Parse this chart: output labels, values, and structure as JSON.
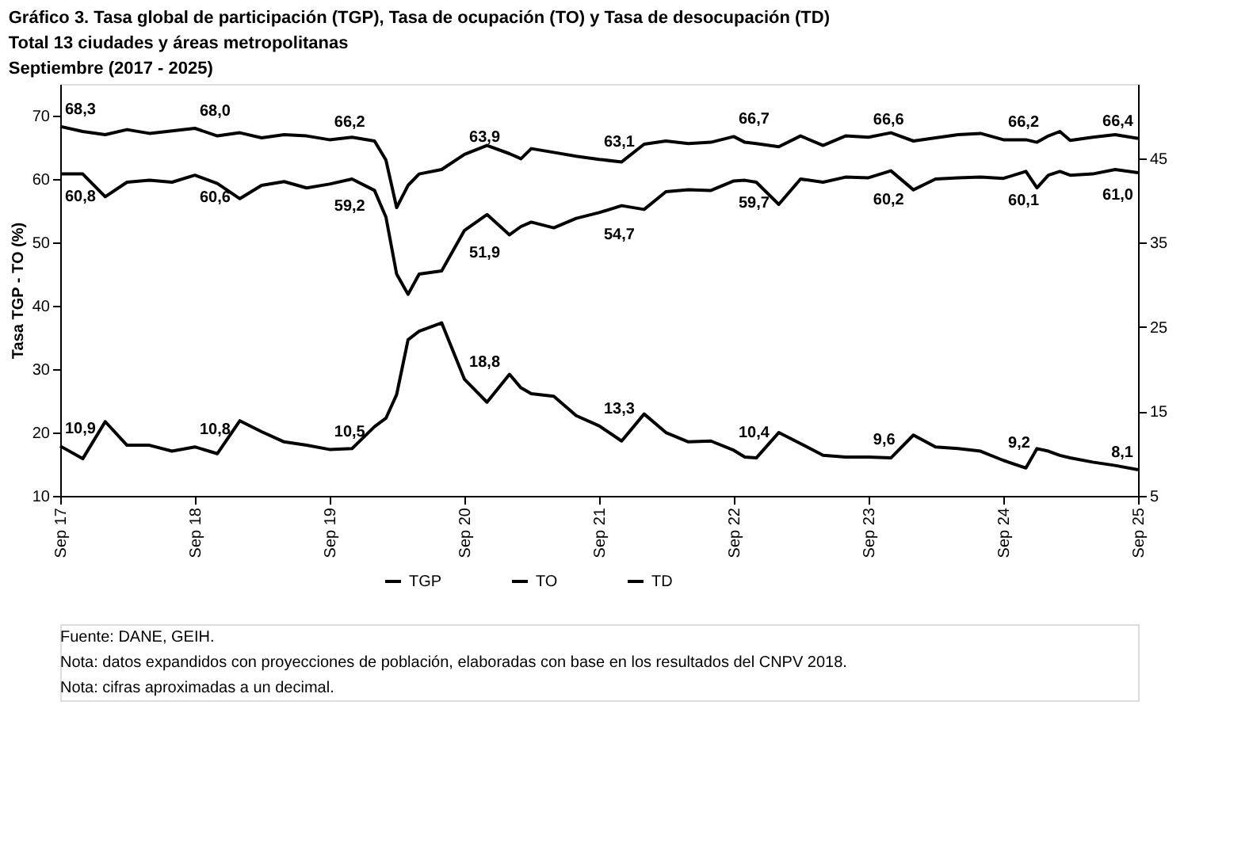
{
  "chart_data": {
    "type": "line",
    "title": "Gráfico 3. Tasa global de participación (TGP), Tasa de ocupación (TO) y Tasa de desocupación (TD)",
    "subtitle": [
      "Total 13 ciudades y áreas metropolitanas",
      "Septiembre (2017 - 2025)"
    ],
    "ylabel": "Tasa TGP - TO (%)",
    "x": [
      "2017-09",
      "2017-11",
      "2018-01",
      "2018-03",
      "2018-05",
      "2018-07",
      "2018-09",
      "2018-11",
      "2019-01",
      "2019-03",
      "2019-05",
      "2019-07",
      "2019-09",
      "2019-11",
      "2020-01",
      "2020-02",
      "2020-03",
      "2020-04",
      "2020-05",
      "2020-07",
      "2020-09",
      "2020-11",
      "2021-01",
      "2021-02",
      "2021-03",
      "2021-05",
      "2021-07",
      "2021-09",
      "2021-11",
      "2022-01",
      "2022-03",
      "2022-05",
      "2022-07",
      "2022-09",
      "2022-10",
      "2022-11",
      "2023-01",
      "2023-03",
      "2023-05",
      "2023-07",
      "2023-09",
      "2023-11",
      "2024-01",
      "2024-03",
      "2024-05",
      "2024-07",
      "2024-09",
      "2024-11",
      "2024-12",
      "2025-01",
      "2025-02",
      "2025-03",
      "2025-05",
      "2025-07",
      "2025-09"
    ],
    "series": [
      {
        "name": "TGP",
        "color": "#000000",
        "values": [
          68.3,
          67.5,
          67.0,
          67.8,
          67.2,
          67.6,
          68.0,
          66.8,
          67.3,
          66.5,
          67.0,
          66.8,
          66.2,
          66.6,
          66.0,
          63.0,
          55.5,
          59.0,
          60.8,
          61.5,
          63.9,
          65.3,
          64.0,
          63.2,
          64.8,
          64.2,
          63.6,
          63.1,
          62.7,
          65.5,
          66.0,
          65.6,
          65.8,
          66.7,
          65.8,
          65.6,
          65.1,
          66.8,
          65.3,
          66.8,
          66.6,
          67.3,
          66.0,
          66.5,
          67.0,
          67.2,
          66.2,
          66.2,
          65.8,
          66.8,
          67.5,
          66.1,
          66.6,
          67.0,
          66.4
        ],
        "value_labels": [
          "68,3",
          null,
          null,
          null,
          null,
          null,
          "68,0",
          null,
          null,
          null,
          null,
          null,
          "66,2",
          null,
          null,
          null,
          null,
          null,
          null,
          null,
          "63,9",
          null,
          null,
          null,
          null,
          null,
          null,
          "63,1",
          null,
          null,
          null,
          null,
          null,
          "66,7",
          null,
          null,
          null,
          null,
          null,
          null,
          "66,6",
          null,
          null,
          null,
          null,
          null,
          "66,2",
          null,
          null,
          null,
          null,
          null,
          null,
          null,
          "66,4"
        ]
      },
      {
        "name": "TO",
        "color": "#000000",
        "values": [
          60.8,
          60.8,
          57.2,
          59.5,
          59.8,
          59.5,
          60.6,
          59.3,
          56.9,
          59.0,
          59.6,
          58.6,
          59.2,
          60.0,
          58.2,
          54.0,
          45.0,
          41.8,
          45.0,
          45.5,
          51.9,
          54.4,
          51.2,
          52.5,
          53.2,
          52.3,
          53.8,
          54.7,
          55.8,
          55.2,
          58.0,
          58.3,
          58.2,
          59.7,
          59.8,
          59.5,
          56.0,
          60.0,
          59.5,
          60.3,
          60.2,
          61.3,
          58.3,
          60.0,
          60.2,
          60.3,
          60.1,
          61.2,
          58.6,
          60.6,
          61.2,
          60.6,
          60.8,
          61.5,
          61.0
        ],
        "value_labels": [
          "60,8",
          null,
          null,
          null,
          null,
          null,
          "60,6",
          null,
          null,
          null,
          null,
          null,
          "59,2",
          null,
          null,
          null,
          null,
          null,
          null,
          null,
          "51,9",
          null,
          null,
          null,
          null,
          null,
          null,
          "54,7",
          null,
          null,
          null,
          null,
          null,
          "59,7",
          null,
          null,
          null,
          null,
          null,
          null,
          "60,2",
          null,
          null,
          null,
          null,
          null,
          "60,1",
          null,
          null,
          null,
          null,
          null,
          null,
          null,
          "61,0"
        ]
      },
      {
        "name": "TD",
        "color": "#000000",
        "axis": "y2",
        "values": [
          10.9,
          9.4,
          13.8,
          11.0,
          11.0,
          10.3,
          10.8,
          10.0,
          13.9,
          12.6,
          11.4,
          11.0,
          10.5,
          10.6,
          13.2,
          14.2,
          17.0,
          23.5,
          24.5,
          25.5,
          18.8,
          16.1,
          19.4,
          17.8,
          17.1,
          16.8,
          14.5,
          13.3,
          11.5,
          14.7,
          12.5,
          11.4,
          11.5,
          10.4,
          9.6,
          9.5,
          12.5,
          11.2,
          9.8,
          9.6,
          9.6,
          9.5,
          12.2,
          10.8,
          10.6,
          10.3,
          9.2,
          8.3,
          10.6,
          10.3,
          9.8,
          9.5,
          9.0,
          8.6,
          8.1
        ],
        "value_labels": [
          "10,9",
          null,
          null,
          null,
          null,
          null,
          "10,8",
          null,
          null,
          null,
          null,
          null,
          "10,5",
          null,
          null,
          null,
          null,
          null,
          null,
          null,
          "18,8",
          null,
          null,
          null,
          null,
          null,
          null,
          "13,3",
          null,
          null,
          null,
          null,
          null,
          "10,4",
          null,
          null,
          null,
          null,
          null,
          null,
          "9,6",
          null,
          null,
          null,
          null,
          null,
          "9,2",
          null,
          null,
          null,
          null,
          null,
          null,
          null,
          "8,1"
        ]
      }
    ],
    "xlim": [
      "2017-09",
      "2025-09"
    ],
    "xticks": [
      {
        "value": "2017-09",
        "label": "Sep 17"
      },
      {
        "value": "2018-09",
        "label": "Sep 18"
      },
      {
        "value": "2019-09",
        "label": "Sep 19"
      },
      {
        "value": "2020-09",
        "label": "Sep 20"
      },
      {
        "value": "2021-09",
        "label": "Sep 21"
      },
      {
        "value": "2022-09",
        "label": "Sep 22"
      },
      {
        "value": "2023-09",
        "label": "Sep 23"
      },
      {
        "value": "2024-09",
        "label": "Sep 24"
      },
      {
        "value": "2025-09",
        "label": "Sep 25"
      }
    ],
    "ylim": [
      10,
      75
    ],
    "yticks": [
      10,
      20,
      30,
      40,
      50,
      60,
      70
    ],
    "y2lim": [
      5,
      53.8
    ],
    "y2ticks": [
      5,
      15,
      25,
      35,
      45
    ],
    "grid": false,
    "legend": "bottom",
    "marker": "none",
    "line_style": "solid",
    "annotations": [
      "Fuente: DANE, GEIH.",
      "Nota: datos expandidos con proyecciones de población, elaboradas con base en los resultados del CNPV 2018.",
      "Nota: cifras aproximadas a un decimal."
    ]
  }
}
